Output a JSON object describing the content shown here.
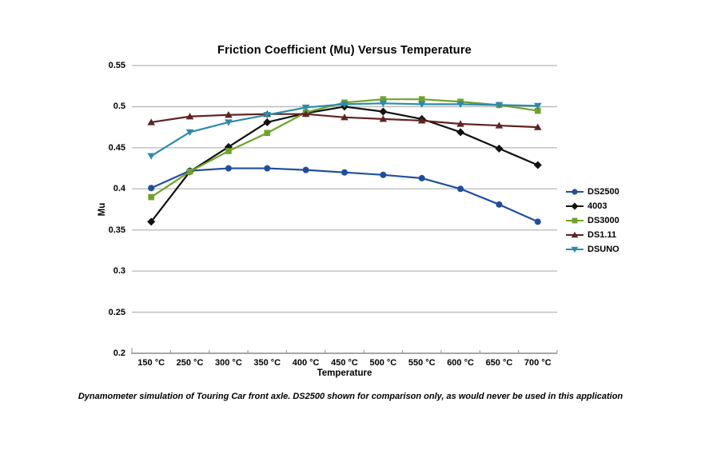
{
  "page": {
    "background": "#FFFFFF"
  },
  "chart_data": {
    "type": "line",
    "title": "Friction Coefficient (Mu) Versus Temperature",
    "xlabel": "Temperature",
    "ylabel": "Mu",
    "caption": "Dynamometer simulation of Touring Car front axle. DS2500 shown for comparison only, as would never be used in this application",
    "categories": [
      "150 °C",
      "250 °C",
      "300 °C",
      "350 °C",
      "400 °C",
      "450 °C",
      "500 °C",
      "550 °C",
      "600 °C",
      "650 °C",
      "700 °C"
    ],
    "ylim": [
      0.2,
      0.55
    ],
    "ytick_step": 0.05,
    "grid": "horizontal-only",
    "legend_position": "right",
    "series": [
      {
        "name": "DS2500",
        "marker": "circle",
        "color": "#1F4E9D",
        "values": [
          0.401,
          0.422,
          0.425,
          0.425,
          0.423,
          0.42,
          0.417,
          0.413,
          0.4,
          0.381,
          0.36
        ]
      },
      {
        "name": "4003",
        "marker": "diamond",
        "color": "#111111",
        "values": [
          0.36,
          0.421,
          0.451,
          0.481,
          0.492,
          0.5,
          0.494,
          0.485,
          0.469,
          0.449,
          0.429
        ]
      },
      {
        "name": "DS3000",
        "marker": "square",
        "color": "#6FA22B",
        "values": [
          0.39,
          0.421,
          0.446,
          0.468,
          0.493,
          0.505,
          0.509,
          0.509,
          0.506,
          0.502,
          0.495
        ]
      },
      {
        "name": "DS1.11",
        "marker": "triangle-up",
        "color": "#5F2322",
        "values": [
          0.481,
          0.488,
          0.49,
          0.491,
          0.491,
          0.487,
          0.485,
          0.483,
          0.479,
          0.477,
          0.475
        ]
      },
      {
        "name": "DSUNO",
        "marker": "triangle-down",
        "color": "#2C8BA8",
        "values": [
          0.44,
          0.469,
          0.481,
          0.49,
          0.499,
          0.503,
          0.504,
          0.503,
          0.503,
          0.502,
          0.501
        ]
      }
    ],
    "style": {
      "gridline_color": "#B8B8B8",
      "axis_line_color": "#A6A6A6",
      "text_color": "#000000"
    }
  }
}
